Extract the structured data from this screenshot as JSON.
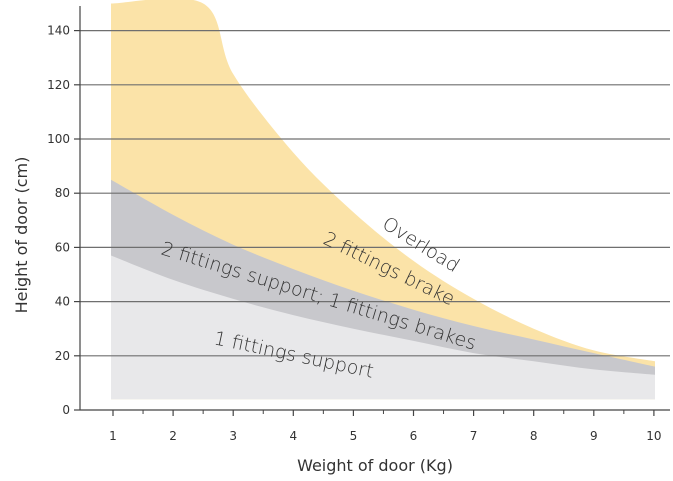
{
  "chart_data": {
    "type": "area",
    "title": "",
    "xlabel": "Weight of door (Kg)",
    "ylabel": "Height of door (cm)",
    "x_ticks": [
      "1",
      "2",
      "3",
      "4",
      "5",
      "6",
      "7",
      "8",
      "9",
      "10"
    ],
    "y_ticks": [
      "0",
      "20",
      "40",
      "60",
      "80",
      "100",
      "120",
      "140"
    ],
    "xlim": [
      0.5,
      10.75
    ],
    "ylim": [
      0,
      150
    ],
    "grid": true,
    "legend": "none",
    "regions": [
      {
        "label": "1 fittings support",
        "color": "#e8e8ea",
        "upper_x": [
          1,
          2,
          3,
          4,
          5,
          6,
          7,
          8,
          9,
          10
        ],
        "upper_y": [
          57,
          48,
          41,
          35,
          30,
          25.5,
          21,
          18,
          15,
          13
        ]
      },
      {
        "label": "2 fittings support; 1 fittings brakes",
        "color": "#c8c8cc",
        "upper_x": [
          1,
          2,
          3,
          4,
          5,
          6,
          7,
          8,
          9,
          10
        ],
        "upper_y": [
          85,
          72,
          61,
          52,
          44,
          37,
          31,
          26,
          21,
          16
        ]
      },
      {
        "label": "2 fittings brake",
        "color": "#fbe3a8",
        "upper_x": [
          1,
          2.5,
          3,
          4,
          5,
          6,
          7,
          8,
          9,
          10
        ],
        "upper_y": [
          150,
          150,
          124,
          95,
          73,
          55,
          41,
          30,
          22,
          18
        ]
      },
      {
        "label": "Overload",
        "color": "#ffffff"
      }
    ]
  }
}
